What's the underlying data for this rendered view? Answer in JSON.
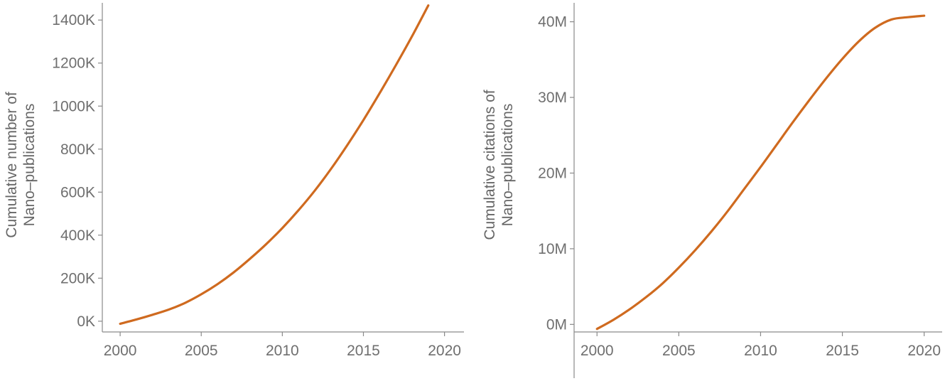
{
  "colors": {
    "series": "#cf6a1f",
    "axis": "#8a8a8a",
    "text": "#6f6f6f"
  },
  "chart_data": [
    {
      "type": "line",
      "title": "",
      "xlabel": "",
      "ylabel_lines": [
        "Cumulative number of",
        "Nano–publications"
      ],
      "xlim": [
        1998.9,
        2021.2
      ],
      "ylim": [
        -50,
        1480
      ],
      "xticks": [
        2000,
        2005,
        2010,
        2015,
        2020
      ],
      "xtick_labels": [
        "2000",
        "2005",
        "2010",
        "2015",
        "2020"
      ],
      "yticks": [
        0,
        200,
        400,
        600,
        800,
        1000,
        1200,
        1400
      ],
      "ytick_labels": [
        "0K",
        "200K",
        "400K",
        "600K",
        "800K",
        "1000K",
        "1200K",
        "1400K"
      ],
      "series": [
        {
          "name": "Cumulative number of Nano–publications",
          "x": [
            2000,
            2001,
            2002,
            2003,
            2004,
            2005,
            2006,
            2007,
            2008,
            2009,
            2010,
            2011,
            2012,
            2013,
            2014,
            2015,
            2016,
            2017,
            2018,
            2019
          ],
          "values": [
            -12,
            8,
            30,
            54,
            85,
            125,
            172,
            227,
            290,
            358,
            433,
            516,
            607,
            708,
            818,
            935,
            1060,
            1190,
            1325,
            1468
          ]
        }
      ]
    },
    {
      "type": "line",
      "title": "",
      "xlabel": "",
      "ylabel_lines": [
        "Cumulative citations of",
        "Nano–publications"
      ],
      "xlim": [
        1998.6,
        2021.1
      ],
      "ylim": [
        -1,
        42.5
      ],
      "xticks": [
        2000,
        2005,
        2010,
        2015,
        2020
      ],
      "xtick_labels": [
        "2000",
        "2005",
        "2010",
        "2015",
        "2020"
      ],
      "yticks": [
        0,
        10,
        20,
        30,
        40
      ],
      "ytick_labels": [
        "0M",
        "10M",
        "20M",
        "30M",
        "40M"
      ],
      "series": [
        {
          "name": "Cumulative citations of Nano–publications",
          "x": [
            2000,
            2001,
            2002,
            2003,
            2004,
            2005,
            2006,
            2007,
            2008,
            2009,
            2010,
            2011,
            2012,
            2013,
            2014,
            2015,
            2016,
            2017,
            2018,
            2019,
            2020
          ],
          "values": [
            -0.6,
            0.6,
            2.0,
            3.6,
            5.4,
            7.5,
            9.8,
            12.3,
            15.0,
            17.9,
            20.8,
            23.8,
            26.8,
            29.7,
            32.5,
            35.1,
            37.4,
            39.2,
            40.3,
            40.6,
            40.8
          ]
        }
      ]
    }
  ]
}
